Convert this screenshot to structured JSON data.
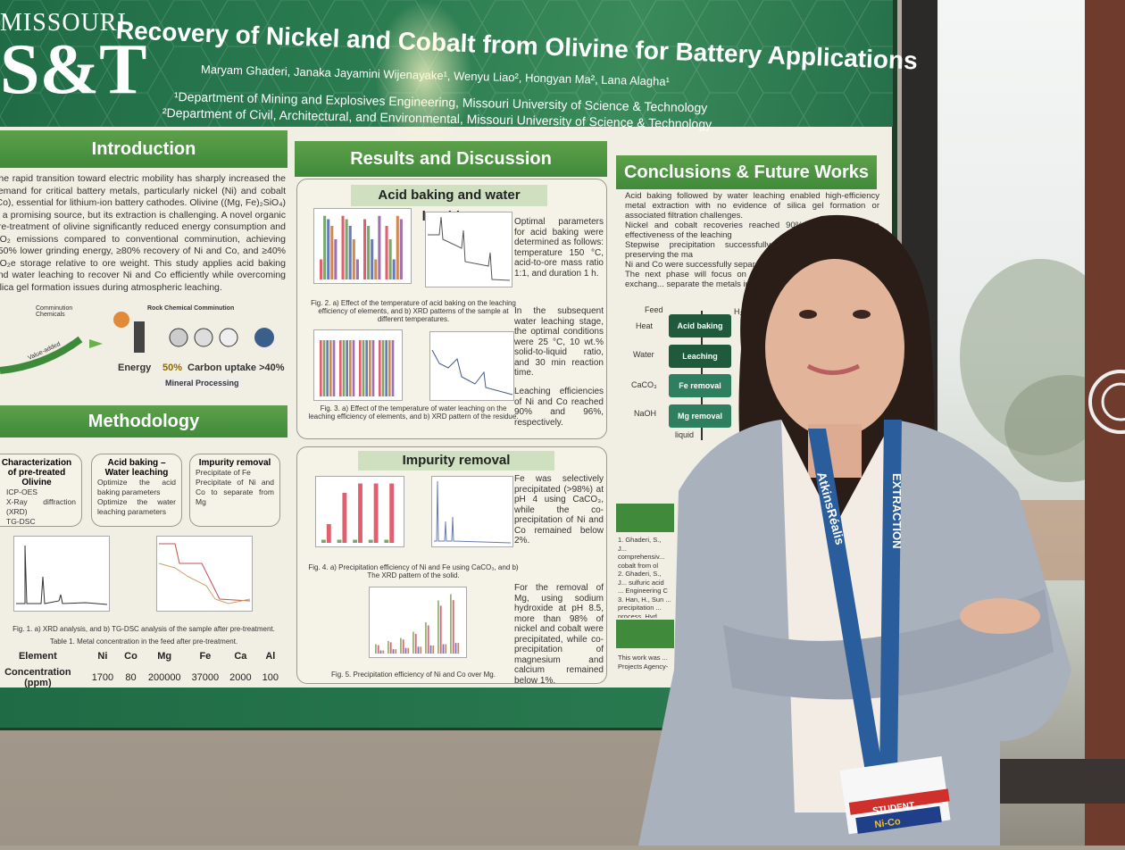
{
  "poster": {
    "logo": {
      "top": "MISSOURI",
      "mark": "S&T"
    },
    "title": "Recovery of Nickel and Cobalt from Olivine for Battery Applications",
    "authors": "Maryam Ghaderi, Janaka Jayamini Wijenayake¹, Wenyu Liao², Hongyan Ma², Lana Alagha¹",
    "dept1": "¹Department of Mining and Explosives Engineering, Missouri University of Science & Technology",
    "dept2": "²Department of Civil, Architectural, and Environmental, Missouri University of Science & Technology",
    "introduction": {
      "heading": "Introduction",
      "text": "The rapid transition toward electric mobility has sharply increased the demand for critical battery metals, particularly nickel (Ni) and cobalt (Co), essential for lithium-ion battery cathodes. Olivine ((Mg, Fe)₂SiO₄) is a promising source, but its extraction is challenging. A novel organic pre-treatment of olivine significantly reduced energy consumption and CO₂ emissions compared to conventional comminution, achieving ≥50% lower grinding energy, ≥80% recovery of Ni and Co, and ≥40% CO₂e storage relative to ore weight. This study applies acid baking and water leaching to recover Ni and Co efficiently while overcoming silica gel formation issues during atmospheric leaching.",
      "diagram": {
        "comminution": "Comminution Chemicals",
        "value_added": "Value-added",
        "rock": "Rock Chemical Comminution",
        "energy": "Energy",
        "energy_pct": "50%",
        "carbon": "Carbon uptake >40%",
        "mineral": "Mineral Processing"
      }
    },
    "methodology": {
      "heading": "Methodology",
      "boxes": [
        {
          "title": "Characterization of pre-treated Olivine",
          "items": [
            "ICP-OES",
            "X-Ray diffraction (XRD)",
            "TG-DSC"
          ]
        },
        {
          "title": "Acid baking – Water leaching",
          "items": [
            "Optimize the acid baking parameters",
            "Optimize the water leaching parameters"
          ]
        },
        {
          "title": "Impurity removal",
          "items": [
            "Precipitate of Fe",
            "Precipitate of Ni and Co to separate from Mg"
          ]
        }
      ],
      "fig1_caption": "Fig. 1. a) XRD analysis, and b) TG-DSC analysis of the sample after pre-treatment.",
      "table_caption": "Table 1. Metal concentration in the feed after pre-treatment.",
      "table": {
        "headers": [
          "Element",
          "Ni",
          "Co",
          "Mg",
          "Fe",
          "Ca",
          "Al"
        ],
        "row": [
          "Concentration (ppm)",
          "1700",
          "80",
          "200000",
          "37000",
          "2000",
          "100"
        ]
      }
    },
    "results": {
      "heading": "Results and Discussion",
      "acid": {
        "subheading": "Acid baking and water leaching",
        "fig2_caption": "Fig. 2. a) Effect of the temperature of acid baking on the leaching efficiency of elements, and b) XRD patterns of the sample at different temperatures.",
        "fig3_caption": "Fig. 3. a) Effect of the temperature of water leaching on the leaching efficiency of elements, and b) XRD pattern of the residue.",
        "bullets": [
          "Optimal parameters for acid baking were determined as follows: temperature 150 °C, acid-to-ore mass ratio 1:1, and duration 1 h.",
          "In the subsequent water leaching stage, the optimal conditions were 25 °C, 10 wt.% solid-to-liquid ratio, and 30 min reaction time.",
          "Leaching efficiencies of Ni and Co reached 90% and 96%, respectively."
        ]
      },
      "impurity": {
        "subheading": "Impurity removal",
        "fig4_caption": "Fig. 4. a) Precipitation efficiency of Ni and Fe using CaCO₃, and b) The XRD pattern of the solid.",
        "fig5_caption": "Fig. 5. Precipitation efficiency of Ni and Co over Mg.",
        "bullets": [
          "Fe was selectively precipitated (>98%) at pH 4 using CaCO₃, while the co-precipitation of Ni and Co remained below 2%.",
          "For the removal of Mg, using sodium hydroxide at pH 8.5, more than 98% of nickel and cobalt were precipitated, while co-precipitation of magnesium and calcium remained below 1%."
        ]
      }
    },
    "conclusions": {
      "heading": "Conclusions & Future Works",
      "bullets": [
        "Acid baking followed by water leaching enabled high-efficiency metal extraction with no evidence of silica gel formation or associated filtration challenges.",
        "Nickel and cobalt recoveries reached 90% ... confirming the effectiveness of the leaching",
        "Stepwise precipitation successfully ... precipitation losses, preserving the ma",
        "Ni and Co were successfully separa",
        "The next phase will focus on optim... extraction (SX) and ion exchang... separate the metals into their pure"
      ],
      "flow": {
        "feed": "Feed",
        "h2so4": "H₂SO",
        "inputs": [
          "Heat",
          "Water",
          "CaCO₃",
          "NaOH"
        ],
        "steps": [
          "Acid baking",
          "Leaching",
          "Fe removal",
          "Mg removal"
        ],
        "liquid": "liquid"
      },
      "refs": [
        "1. Ghaderi, S., J... comprehensiv... cobalt from ol",
        "2. Ghaderi, S., J... sulfuric acid ... Engineering C",
        "3. Han, H., Sun ... precipitation ... process. Hyd"
      ],
      "ack": "This work was ... Projects Agency-"
    }
  },
  "badge": {
    "lanyard": "AtkinsRéalis",
    "event": "EXTRACTION",
    "role": "STUDENT",
    "logo": "Ni-Co"
  },
  "colors": {
    "poster_green": "#2c7d52",
    "section_green": "#4f9644",
    "blazer": "#a9b2bd",
    "lanyard": "#2a5d9c"
  }
}
